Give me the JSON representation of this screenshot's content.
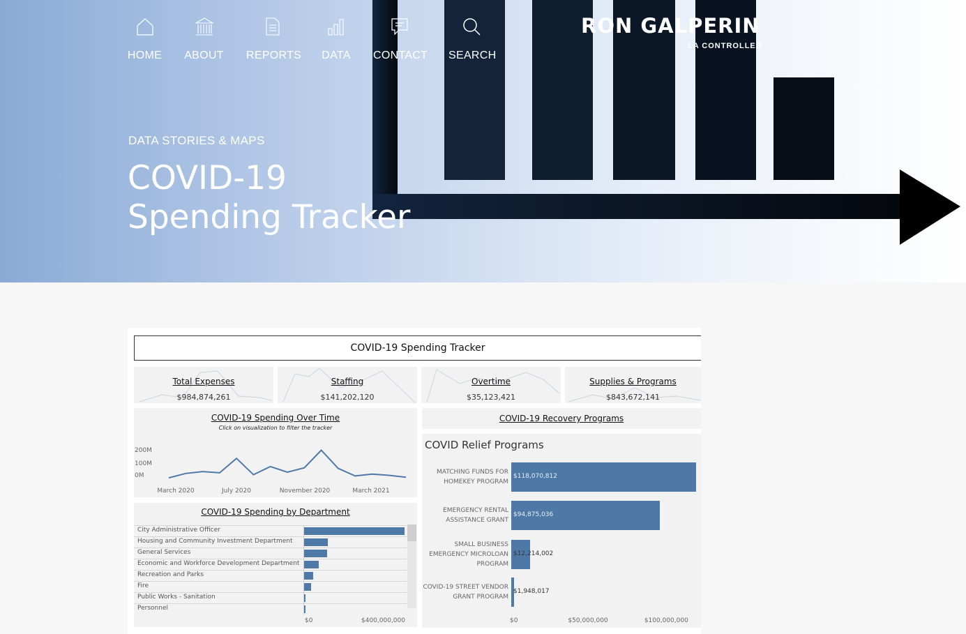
{
  "nav": [
    {
      "label": "HOME",
      "icon": "home-icon"
    },
    {
      "label": "ABOUT",
      "icon": "building-icon"
    },
    {
      "label": "REPORTS",
      "icon": "document-icon"
    },
    {
      "label": "DATA",
      "icon": "bar-chart-icon"
    },
    {
      "label": "CONTACT",
      "icon": "chat-icon"
    },
    {
      "label": "SEARCH",
      "icon": "search-icon"
    }
  ],
  "logo": {
    "name": "RON GALPERIN",
    "sub": "LA CONTROLLER"
  },
  "hero": {
    "eyebrow": "DATA STORIES & MAPS",
    "title_line1": "COVID-19",
    "title_line2": "Spending Tracker"
  },
  "dashboard": {
    "title": "COVID-19 Spending Tracker",
    "kpis": [
      {
        "title": "Total Expenses",
        "value": "$984,874,261"
      },
      {
        "title": "Staffing",
        "value": "$141,202,120"
      },
      {
        "title": "Overtime",
        "value": "$35,123,421"
      },
      {
        "title": "Supplies & Programs",
        "value": "$843,672,141"
      }
    ],
    "time_panel": {
      "title": "COVID-19 Spending Over Time",
      "note": "Click on visualization to filter the tracker"
    },
    "dept_panel": {
      "title": "COVID-19 Spending by Department"
    },
    "recovery_link": "COVID-19 Recovery Programs",
    "relief_title": "COVID Relief Programs"
  },
  "colors": {
    "accent": "#4e79a7",
    "hero_dark": "#0c1a2e"
  },
  "chart_data": [
    {
      "type": "line",
      "title": "COVID-19 Spending Over Time",
      "x_ticks": [
        "March 2020",
        "July 2020",
        "November 2020",
        "March 2021"
      ],
      "y_ticks": [
        "200M",
        "100M",
        "0M"
      ],
      "ylim": [
        0,
        250
      ],
      "series": [
        {
          "values": [
            5,
            40,
            55,
            45,
            160,
            30,
            95,
            50,
            85,
            225,
            80,
            20,
            35,
            25,
            10
          ]
        }
      ]
    },
    {
      "type": "bar",
      "title": "COVID-19 Spending by Department",
      "categories": [
        "City Administrative Officer",
        "Housing and Community Investment Department",
        "General Services",
        "Economic and Workforce Development Department",
        "Recreation and Parks",
        "Fire",
        "Public Works - Sanitation",
        "Personnel"
      ],
      "values": [
        448000000,
        107000000,
        103000000,
        65000000,
        39000000,
        30000000,
        7000000,
        5000000
      ],
      "x_ticks": [
        "$0",
        "$400,000,000"
      ],
      "xlim": [
        0,
        450000000
      ]
    },
    {
      "type": "bar",
      "title": "COVID Relief Programs",
      "categories": [
        "MATCHING FUNDS FOR HOMEKEY PROGRAM",
        "EMERGENCY RENTAL ASSISTANCE GRANT",
        "SMALL BUSINESS EMERGENCY MICROLOAN PROGRAM",
        "COVID-19 STREET VENDOR GRANT PROGRAM"
      ],
      "values": [
        118070812,
        94875036,
        12214002,
        1948017
      ],
      "value_labels": [
        "$118,070,812",
        "$94,875,036",
        "$12,214,002",
        "$1,948,017"
      ],
      "x_ticks": [
        "$0",
        "$50,000,000",
        "$100,000,000"
      ],
      "xlim": [
        0,
        118070812
      ]
    }
  ]
}
